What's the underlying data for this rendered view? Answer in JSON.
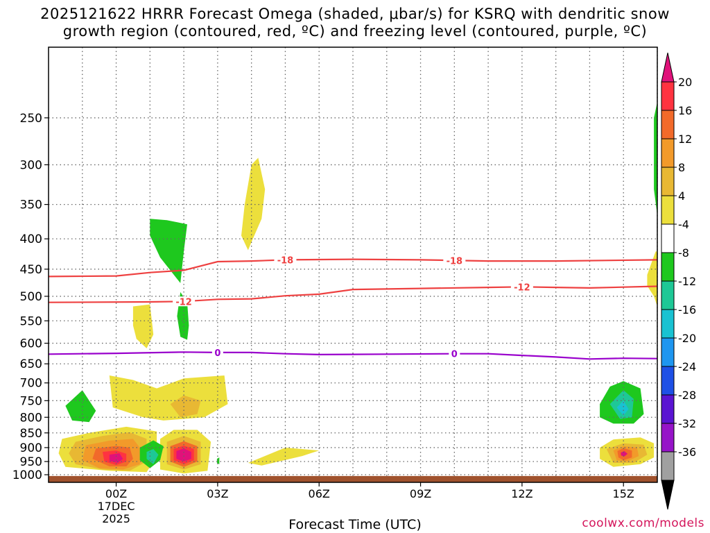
{
  "title_line1": "2025121622 HRRR Forecast Omega (shaded, μbar/s) for KSRQ with dendritic snow",
  "title_line2": "growth region (contoured, red, ºC) and freezing level (contoured, purple, ºC)",
  "xlabel": "Forecast Time (UTC)",
  "credit": "coolwx.com/models",
  "chart_data": {
    "type": "heatmap",
    "title": "2025121622 HRRR Forecast Omega (shaded, μbar/s) for KSRQ with dendritic snow growth region (contoured, red, ºC) and freezing level (contoured, purple, ºC)",
    "xlabel": "Forecast Time (UTC)",
    "ylabel": "",
    "x_range_hours": [
      -2,
      16
    ],
    "y_range_hpa": [
      1030,
      190
    ],
    "y_scale": "log-pressure",
    "grid": true,
    "x_ticks": [
      {
        "hour": 0,
        "label": "00Z",
        "sub1": "17DEC",
        "sub2": "2025"
      },
      {
        "hour": 3,
        "label": "03Z"
      },
      {
        "hour": 6,
        "label": "06Z"
      },
      {
        "hour": 9,
        "label": "09Z"
      },
      {
        "hour": 12,
        "label": "12Z"
      },
      {
        "hour": 15,
        "label": "15Z"
      }
    ],
    "y_ticks": [
      250,
      300,
      350,
      400,
      450,
      500,
      550,
      600,
      650,
      700,
      750,
      800,
      850,
      900,
      950,
      1000
    ],
    "colorbar": {
      "labels": [
        "20",
        "16",
        "12",
        "8",
        "4",
        "-4",
        "-8",
        "-12",
        "-16",
        "-20",
        "-24",
        "-28",
        "-32",
        "-36"
      ],
      "colors": [
        "#ff3340",
        "#f26a2a",
        "#f29a2a",
        "#e8b833",
        "#ecdf3c",
        "#ffffff",
        "#1ec81e",
        "#1ec896",
        "#19c2d2",
        "#1e96f0",
        "#1e50e6",
        "#5a14d2",
        "#9614c8",
        "#a0a0a0"
      ],
      "top_color": "#e0127a",
      "bottom_color": "#000000"
    },
    "contours": [
      {
        "name": "-18",
        "color": "#ee4040",
        "labels": [
          5,
          10
        ],
        "points": [
          [
            -2,
            463
          ],
          [
            0,
            462
          ],
          [
            1,
            456
          ],
          [
            2,
            452
          ],
          [
            3,
            437
          ],
          [
            4,
            436
          ],
          [
            5,
            434
          ],
          [
            7,
            433
          ],
          [
            9,
            434
          ],
          [
            11,
            436
          ],
          [
            13,
            436
          ],
          [
            16,
            434
          ]
        ]
      },
      {
        "name": "-12",
        "color": "#ee4040",
        "labels": [
          2,
          12
        ],
        "points": [
          [
            -2,
            512
          ],
          [
            1,
            511
          ],
          [
            2,
            510
          ],
          [
            3,
            506
          ],
          [
            4,
            505
          ],
          [
            5,
            499
          ],
          [
            6,
            496
          ],
          [
            7,
            487
          ],
          [
            9,
            485
          ],
          [
            11,
            483
          ],
          [
            12,
            482
          ],
          [
            13,
            483
          ],
          [
            14,
            484
          ],
          [
            16,
            481
          ]
        ]
      },
      {
        "name": "0",
        "color": "#9900cc",
        "labels": [
          3,
          10
        ],
        "points": [
          [
            -2,
            626
          ],
          [
            0,
            624
          ],
          [
            2,
            621
          ],
          [
            3,
            622
          ],
          [
            4,
            622
          ],
          [
            5,
            625
          ],
          [
            6,
            627
          ],
          [
            8,
            626
          ],
          [
            10,
            625
          ],
          [
            11,
            625
          ],
          [
            12,
            629
          ],
          [
            13,
            633
          ],
          [
            14,
            638
          ],
          [
            15,
            636
          ],
          [
            16,
            637
          ]
        ]
      }
    ],
    "omega_regions": [
      {
        "level": "4",
        "color": "#ecdf3c",
        "points": [
          [
            -1.6,
            870
          ],
          [
            -0.8,
            850
          ],
          [
            0.3,
            830
          ],
          [
            1.2,
            845
          ],
          [
            1.2,
            930
          ],
          [
            0.9,
            990
          ],
          [
            -0.2,
            985
          ],
          [
            -1.5,
            970
          ],
          [
            -1.7,
            920
          ]
        ]
      },
      {
        "level": "8",
        "color": "#e8b833",
        "points": [
          [
            -1.2,
            880
          ],
          [
            -0.4,
            860
          ],
          [
            0.4,
            848
          ],
          [
            0.9,
            870
          ],
          [
            0.9,
            950
          ],
          [
            0.4,
            985
          ],
          [
            -0.4,
            980
          ],
          [
            -1.2,
            960
          ],
          [
            -1.4,
            920
          ]
        ]
      },
      {
        "level": "12",
        "color": "#f29a2a",
        "points": [
          [
            -0.9,
            892
          ],
          [
            -0.2,
            876
          ],
          [
            0.5,
            870
          ],
          [
            0.7,
            900
          ],
          [
            0.7,
            960
          ],
          [
            0.2,
            980
          ],
          [
            -0.5,
            975
          ],
          [
            -1.0,
            945
          ]
        ]
      },
      {
        "level": "16",
        "color": "#f26a2a",
        "points": [
          [
            -0.6,
            903
          ],
          [
            0,
            894
          ],
          [
            0.4,
            900
          ],
          [
            0.5,
            940
          ],
          [
            0.3,
            968
          ],
          [
            -0.2,
            968
          ],
          [
            -0.7,
            940
          ]
        ]
      },
      {
        "level": "20",
        "color": "#ff3340",
        "points": [
          [
            -0.4,
            915
          ],
          [
            0,
            910
          ],
          [
            0.3,
            922
          ],
          [
            0.3,
            950
          ],
          [
            0,
            963
          ],
          [
            -0.35,
            950
          ]
        ]
      },
      {
        "level": "20+",
        "color": "#e0127a",
        "points": [
          [
            -0.2,
            925
          ],
          [
            0.1,
            920
          ],
          [
            0.2,
            940
          ],
          [
            0.05,
            955
          ],
          [
            -0.2,
            948
          ]
        ]
      },
      {
        "level": "4",
        "color": "#ecdf3c",
        "points": [
          [
            -0.2,
            680
          ],
          [
            0.5,
            692
          ],
          [
            1.2,
            715
          ],
          [
            2.0,
            688
          ],
          [
            3.2,
            680
          ],
          [
            3.3,
            760
          ],
          [
            2.6,
            800
          ],
          [
            1.4,
            810
          ],
          [
            0.8,
            800
          ],
          [
            -0.1,
            770
          ]
        ]
      },
      {
        "level": "8",
        "color": "#e8b833",
        "points": [
          [
            1.6,
            760
          ],
          [
            2.0,
            735
          ],
          [
            2.5,
            750
          ],
          [
            2.4,
            790
          ],
          [
            1.9,
            800
          ]
        ]
      },
      {
        "level": "4",
        "color": "#ecdf3c",
        "points": [
          [
            1.3,
            870
          ],
          [
            1.7,
            840
          ],
          [
            2.4,
            840
          ],
          [
            2.8,
            880
          ],
          [
            2.7,
            985
          ],
          [
            2.0,
            995
          ],
          [
            1.3,
            980
          ]
        ]
      },
      {
        "level": "8",
        "color": "#e8b833",
        "points": [
          [
            1.5,
            880
          ],
          [
            2.0,
            860
          ],
          [
            2.5,
            880
          ],
          [
            2.5,
            960
          ],
          [
            2.0,
            980
          ],
          [
            1.5,
            960
          ]
        ]
      },
      {
        "level": "16",
        "color": "#f26a2a",
        "points": [
          [
            1.6,
            895
          ],
          [
            2.0,
            878
          ],
          [
            2.4,
            895
          ],
          [
            2.4,
            950
          ],
          [
            2.0,
            970
          ],
          [
            1.6,
            950
          ]
        ]
      },
      {
        "level": "20",
        "color": "#ff3340",
        "points": [
          [
            1.7,
            905
          ],
          [
            2.0,
            893
          ],
          [
            2.3,
            905
          ],
          [
            2.3,
            945
          ],
          [
            2.0,
            960
          ],
          [
            1.7,
            945
          ]
        ]
      },
      {
        "level": "20+",
        "color": "#e0127a",
        "points": [
          [
            1.78,
            912
          ],
          [
            2.0,
            903
          ],
          [
            2.22,
            915
          ],
          [
            2.22,
            940
          ],
          [
            2.0,
            950
          ],
          [
            1.78,
            940
          ]
        ]
      },
      {
        "level": "4",
        "color": "#ecdf3c",
        "points": [
          [
            0.5,
            520
          ],
          [
            1.0,
            516
          ],
          [
            1.1,
            580
          ],
          [
            0.9,
            612
          ],
          [
            0.6,
            590
          ],
          [
            0.5,
            560
          ]
        ]
      },
      {
        "level": "4",
        "color": "#ecdf3c",
        "points": [
          [
            3.7,
            395
          ],
          [
            3.8,
            350
          ],
          [
            4.0,
            300
          ],
          [
            4.2,
            292
          ],
          [
            4.4,
            330
          ],
          [
            4.3,
            370
          ],
          [
            4.0,
            405
          ],
          [
            3.9,
            418
          ]
        ]
      },
      {
        "level": "4",
        "color": "#ecdf3c",
        "points": [
          [
            3.9,
            955
          ],
          [
            5.0,
            900
          ],
          [
            6.0,
            910
          ],
          [
            5.5,
            930
          ],
          [
            4.3,
            965
          ]
        ]
      },
      {
        "level": "-4",
        "color": "#1ec81e",
        "points": [
          [
            -1.5,
            765
          ],
          [
            -1.0,
            720
          ],
          [
            -0.6,
            780
          ],
          [
            -0.8,
            815
          ],
          [
            -1.3,
            810
          ]
        ]
      },
      {
        "level": "-4",
        "color": "#1ec81e",
        "points": [
          [
            1.0,
            370
          ],
          [
            1.5,
            372
          ],
          [
            2.1,
            378
          ],
          [
            2.0,
            420
          ],
          [
            1.9,
            475
          ],
          [
            1.3,
            430
          ],
          [
            1.0,
            395
          ]
        ]
      },
      {
        "level": "-4",
        "color": "#1ec81e",
        "points": [
          [
            1.9,
            492
          ],
          [
            2.1,
            512
          ],
          [
            2.15,
            560
          ],
          [
            2.1,
            592
          ],
          [
            1.9,
            585
          ],
          [
            1.8,
            540
          ]
        ]
      },
      {
        "level": "-4",
        "color": "#1ec81e",
        "points": [
          [
            0.7,
            900
          ],
          [
            1.1,
            875
          ],
          [
            1.4,
            895
          ],
          [
            1.3,
            945
          ],
          [
            1.0,
            975
          ],
          [
            0.7,
            945
          ]
        ]
      },
      {
        "level": "-8",
        "color": "#1ec896",
        "points": [
          [
            0.9,
            915
          ],
          [
            1.1,
            905
          ],
          [
            1.25,
            925
          ],
          [
            1.1,
            960
          ],
          [
            0.9,
            940
          ]
        ]
      },
      {
        "level": "-4",
        "color": "#1ec81e",
        "points": [
          [
            2.98,
            940
          ],
          [
            3.05,
            935
          ],
          [
            3.05,
            960
          ],
          [
            2.98,
            955
          ]
        ]
      },
      {
        "level": "-4",
        "color": "#1ec81e",
        "points": [
          [
            14.3,
            760
          ],
          [
            14.6,
            710
          ],
          [
            15.0,
            695
          ],
          [
            15.5,
            715
          ],
          [
            15.6,
            790
          ],
          [
            15.3,
            820
          ],
          [
            14.7,
            820
          ],
          [
            14.3,
            800
          ]
        ]
      },
      {
        "level": "-8",
        "color": "#1ec896",
        "points": [
          [
            14.6,
            760
          ],
          [
            15.0,
            720
          ],
          [
            15.3,
            745
          ],
          [
            15.25,
            800
          ],
          [
            14.9,
            805
          ]
        ]
      },
      {
        "level": "-12",
        "color": "#19c2d2",
        "points": [
          [
            14.8,
            770
          ],
          [
            15.0,
            750
          ],
          [
            15.15,
            775
          ],
          [
            15.0,
            795
          ]
        ]
      },
      {
        "level": "4",
        "color": "#ecdf3c",
        "points": [
          [
            14.3,
            900
          ],
          [
            14.7,
            872
          ],
          [
            15.5,
            865
          ],
          [
            15.9,
            885
          ],
          [
            15.9,
            935
          ],
          [
            15.5,
            960
          ],
          [
            14.7,
            970
          ],
          [
            14.3,
            940
          ]
        ]
      },
      {
        "level": "8",
        "color": "#e8b833",
        "points": [
          [
            14.5,
            905
          ],
          [
            15.0,
            885
          ],
          [
            15.6,
            890
          ],
          [
            15.7,
            925
          ],
          [
            15.3,
            955
          ],
          [
            14.7,
            955
          ]
        ]
      },
      {
        "level": "12",
        "color": "#f29a2a",
        "points": [
          [
            14.7,
            910
          ],
          [
            15.0,
            895
          ],
          [
            15.4,
            900
          ],
          [
            15.45,
            930
          ],
          [
            15.1,
            950
          ],
          [
            14.8,
            945
          ]
        ]
      },
      {
        "level": "16",
        "color": "#f26a2a",
        "points": [
          [
            14.82,
            912
          ],
          [
            15.0,
            902
          ],
          [
            15.25,
            910
          ],
          [
            15.25,
            935
          ],
          [
            15.0,
            945
          ],
          [
            14.85,
            935
          ]
        ]
      },
      {
        "level": "20+",
        "color": "#e0127a",
        "points": [
          [
            14.92,
            918
          ],
          [
            15.02,
            912
          ],
          [
            15.12,
            922
          ],
          [
            15.02,
            932
          ],
          [
            14.93,
            928
          ]
        ]
      },
      {
        "level": "-4",
        "color": "#1ec81e",
        "points": [
          [
            15.9,
            250
          ],
          [
            16.0,
            235
          ],
          [
            16.0,
            365
          ],
          [
            15.9,
            330
          ]
        ]
      },
      {
        "level": "4",
        "color": "#ecdf3c",
        "points": [
          [
            15.7,
            460
          ],
          [
            15.95,
            420
          ],
          [
            16.0,
            420
          ],
          [
            16.0,
            520
          ],
          [
            15.9,
            500
          ],
          [
            15.7,
            480
          ]
        ]
      }
    ]
  }
}
